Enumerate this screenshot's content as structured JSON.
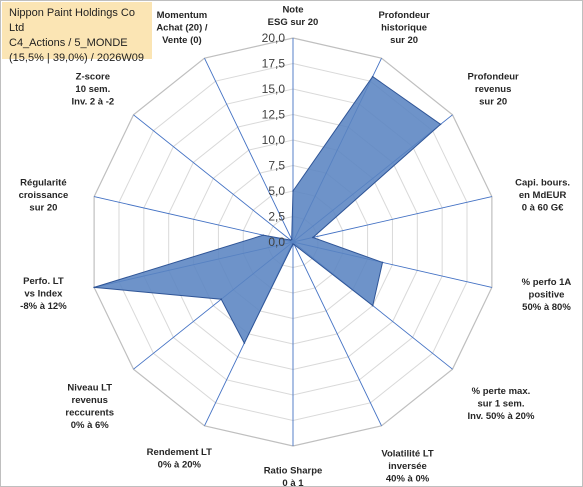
{
  "chart_title": {
    "line1": "Nippon Paint Holdings Co Ltd",
    "line2": "C4_Actions / 5_MONDE",
    "line3": "(15,5% | 39,0%) / 2026W09"
  },
  "chart_data": {
    "type": "radar",
    "rmax": 20,
    "tick_step": 2.5,
    "tick_labels": [
      "0,0",
      "2,5",
      "5,0",
      "7,5",
      "10,0",
      "12,5",
      "15,0",
      "17,5",
      "20,0"
    ],
    "colors": {
      "fill": "#5a84c2",
      "stroke": "#2f5597",
      "grid": "#d9d9d9",
      "spoke": "#4472c4"
    },
    "axes": [
      {
        "label": [
          "Note",
          "ESG sur 20"
        ],
        "value": 5
      },
      {
        "label": [
          "Profondeur",
          "historique",
          "sur 20"
        ],
        "value": 18
      },
      {
        "label": [
          "Profondeur",
          "revenus",
          "sur 20"
        ],
        "value": 18.5
      },
      {
        "label": [
          "Capi. bours.",
          "en MdEUR",
          "0 à 60 G€"
        ],
        "value": 2
      },
      {
        "label": [
          "% perfo 1A",
          "positive",
          "50% à 80%"
        ],
        "value": 9
      },
      {
        "label": [
          "% perte max.",
          "sur 1 sem.",
          "Inv. 50% à 20%"
        ],
        "value": 10
      },
      {
        "label": [
          "Volatilité LT",
          "inversée",
          "40% à 0%"
        ],
        "value": 0.3
      },
      {
        "label": [
          "Ratio Sharpe",
          "0 à 1"
        ],
        "value": 0.2
      },
      {
        "label": [
          "Rendement LT",
          "0% à 20%"
        ],
        "value": 11
      },
      {
        "label": [
          "Niveau LT",
          "revenus",
          "reccurents",
          "0% à 6%"
        ],
        "value": 9
      },
      {
        "label": [
          "Perfo. LT",
          "vs Index",
          "-8% à 12%"
        ],
        "value": 20
      },
      {
        "label": [
          "Régularité",
          "croissance",
          "sur 20"
        ],
        "value": 3
      },
      {
        "label": [
          "Z-score",
          "10 sem.",
          "Inv. 2 à -2"
        ],
        "value": 0.3
      },
      {
        "label": [
          "Momentum",
          "Achat (20) /",
          "Vente (0)"
        ],
        "value": 0.3
      }
    ]
  }
}
